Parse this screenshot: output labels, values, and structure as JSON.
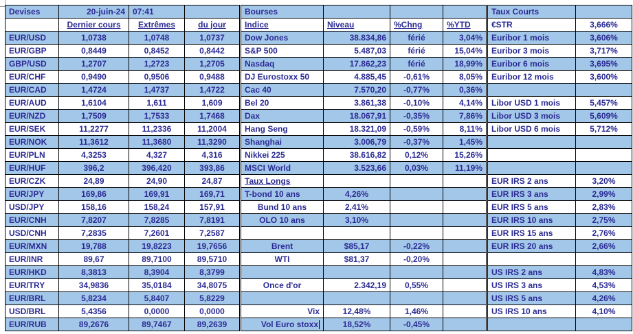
{
  "meta": {
    "date": "20-juin-24",
    "time": "07:41"
  },
  "colors": {
    "row_blue": "#A3C7E9",
    "text_navy": "#2B2B94",
    "grid": "#000000"
  },
  "devises": {
    "title": "Devises",
    "columns": [
      "Dernier cours",
      "Extrêmes",
      "du jour"
    ],
    "rows": [
      {
        "pair": "EUR/USD",
        "last": "1,0738",
        "ext": "1,0748",
        "day": "1,0737"
      },
      {
        "pair": "EUR/GBP",
        "last": "0,8449",
        "ext": "0,8452",
        "day": "0,8442"
      },
      {
        "pair": "GBP/USD",
        "last": "1,2707",
        "ext": "1,2723",
        "day": "1,2705"
      },
      {
        "pair": "EUR/CHF",
        "last": "0,9490",
        "ext": "0,9506",
        "day": "0,9488"
      },
      {
        "pair": "EUR/CAD",
        "last": "1,4724",
        "ext": "1,4737",
        "day": "1,4722"
      },
      {
        "pair": "EUR/AUD",
        "last": "1,6104",
        "ext": "1,611",
        "day": "1,609"
      },
      {
        "pair": "EUR/NZD",
        "last": "1,7509",
        "ext": "1,7533",
        "day": "1,7468"
      },
      {
        "pair": "EUR/SEK",
        "last": "11,2277",
        "ext": "11,2336",
        "day": "11,2004"
      },
      {
        "pair": "EUR/NOK",
        "last": "11,3612",
        "ext": "11,3680",
        "day": "11,3290"
      },
      {
        "pair": "EUR/PLN",
        "last": "4,3253",
        "ext": "4,327",
        "day": "4,316"
      },
      {
        "pair": "EUR/HUF",
        "last": "396,2",
        "ext": "396,420",
        "day": "393,86"
      },
      {
        "pair": "EUR/CZK",
        "last": "24,89",
        "ext": "24,90",
        "day": "24,87"
      },
      {
        "pair": "EUR/JPY",
        "last": "169,86",
        "ext": "169,91",
        "day": "169,71"
      },
      {
        "pair": "USD/JPY",
        "last": "158,16",
        "ext": "158,24",
        "day": "157,91"
      },
      {
        "pair": "EUR/CNH",
        "last": "7,8207",
        "ext": "7,8285",
        "day": "7,8191"
      },
      {
        "pair": "USD/CNH",
        "last": "7,2835",
        "ext": "7,2601",
        "day": "7,2587"
      },
      {
        "pair": "EUR/MXN",
        "last": "19,788",
        "ext": "19,8223",
        "day": "19,7656"
      },
      {
        "pair": "EUR/INR",
        "last": "89,67",
        "ext": "89,7100",
        "day": "89,5710"
      },
      {
        "pair": "EUR/HKD",
        "last": "8,3813",
        "ext": "8,3904",
        "day": "8,3799"
      },
      {
        "pair": "EUR/TRY",
        "last": "34,9836",
        "ext": "35,0184",
        "day": "34,8075"
      },
      {
        "pair": "EUR/BRL",
        "last": "5,8234",
        "ext": "5,8407",
        "day": "5,8229"
      },
      {
        "pair": "USD/BRL",
        "last": "5,4356",
        "ext": "0,0000",
        "day": "0,0000"
      },
      {
        "pair": "EUR/RUB",
        "last": "89,2676",
        "ext": "89,7467",
        "day": "89,2639"
      }
    ]
  },
  "bourses": {
    "title": "Bourses",
    "columns": [
      "Indice",
      "Niveau",
      "%Chng",
      "%YTD"
    ],
    "rows": [
      {
        "kind": "index",
        "c1": "Dow Jones",
        "c2": "38.834,86",
        "c3": "férié",
        "c4": "3,04%"
      },
      {
        "kind": "index",
        "c1": "S&P 500",
        "c2": "5.487,03",
        "c3": "férié",
        "c4": "15,04%"
      },
      {
        "kind": "index",
        "c1": "Nasdaq",
        "c2": "17.862,23",
        "c3": "férié",
        "c4": "18,99%"
      },
      {
        "kind": "index",
        "c1": "DJ Eurostoxx 50",
        "c2": "4.885,45",
        "c3": "-0,61%",
        "c4": "8,05%"
      },
      {
        "kind": "index",
        "c1": "Cac 40",
        "c2": "7.570,20",
        "c3": "-0,77%",
        "c4": "0,36%"
      },
      {
        "kind": "index",
        "c1": "Bel 20",
        "c2": "3.861,38",
        "c3": "-0,10%",
        "c4": "4,14%"
      },
      {
        "kind": "index",
        "c1": "Dax",
        "c2": "18.067,91",
        "c3": "-0,35%",
        "c4": "7,86%"
      },
      {
        "kind": "index",
        "c1": "Hang Seng",
        "c2": "18.321,09",
        "c3": "-0,59%",
        "c4": "8,11%"
      },
      {
        "kind": "index",
        "c1": "Shanghai",
        "c2": "3.006,79",
        "c3": "-0,37%",
        "c4": "1,45%"
      },
      {
        "kind": "index",
        "c1": "Nikkei 225",
        "c2": "38.616,82",
        "c3": "0,12%",
        "c4": "15,26%"
      },
      {
        "kind": "index",
        "c1": "MSCI World",
        "c2": "3.523,66",
        "c3": "0,03%",
        "c4": "11,19%"
      },
      {
        "kind": "subheader",
        "c1": "Taux Longs",
        "c2": "",
        "c3": "",
        "c4": ""
      },
      {
        "kind": "rate1",
        "c1": "T-bond 10 ans",
        "c2": "4,26%",
        "c3": "",
        "c4": ""
      },
      {
        "kind": "rate2",
        "c1": "Bund 10 ans",
        "c2": "2,41%",
        "c3": "",
        "c4": ""
      },
      {
        "kind": "rate2",
        "c1": "OLO 10 ans",
        "c2": "3,10%",
        "c3": "",
        "c4": ""
      },
      {
        "kind": "empty",
        "c1": "",
        "c2": "",
        "c3": "",
        "c4": ""
      },
      {
        "kind": "commodity",
        "c1": "Brent",
        "c2": "$85,17",
        "c3": "-0,22%",
        "c4": ""
      },
      {
        "kind": "commodity",
        "c1": "WTI",
        "c2": "$81,37",
        "c3": "-0,20%",
        "c4": ""
      },
      {
        "kind": "empty",
        "c1": "",
        "c2": "",
        "c3": "",
        "c4": ""
      },
      {
        "kind": "gold",
        "c1": "Once d'or",
        "c2": "2.342,19",
        "c3": "0,55%",
        "c4": ""
      },
      {
        "kind": "empty",
        "c1": "",
        "c2": "",
        "c3": "",
        "c4": ""
      },
      {
        "kind": "vol",
        "c1": "Vix",
        "c2": "12,48%",
        "c3": "1,46%",
        "c4": ""
      },
      {
        "kind": "vol",
        "c1": "Vol Euro stoxx",
        "c2": "18,52%",
        "c3": "-0,45%",
        "c4": "",
        "cursor": true
      }
    ]
  },
  "taux_courts": {
    "title": "Taux Courts",
    "rows": [
      {
        "label": "€STR",
        "value": "3,666%"
      },
      {
        "label": "Euribor 1 mois",
        "value": "3,606%"
      },
      {
        "label": "Euribor 3 mois",
        "value": "3,717%"
      },
      {
        "label": "Euribor 6 mois",
        "value": "3,695%"
      },
      {
        "label": "Euribor 12 mois",
        "value": "3,600%"
      },
      {
        "label": "",
        "value": ""
      },
      {
        "label": "Libor USD 1 mois",
        "value": "5,457%"
      },
      {
        "label": "Libor USD 3 mois",
        "value": "5,609%"
      },
      {
        "label": "Libor USD 6 mois",
        "value": "5,712%"
      },
      {
        "label": "",
        "value": ""
      },
      {
        "label": "",
        "value": ""
      },
      {
        "label": "",
        "value": ""
      },
      {
        "label": "EUR IRS 2 ans",
        "value": "3,20%"
      },
      {
        "label": "EUR IRS 3 ans",
        "value": "2,99%"
      },
      {
        "label": "EUR IRS 5 ans",
        "value": "2,83%"
      },
      {
        "label": "EUR IRS 10 ans",
        "value": "2,75%"
      },
      {
        "label": "EUR IRS 15 ans",
        "value": "2,76%"
      },
      {
        "label": "EUR IRS 20 ans",
        "value": "2,66%"
      },
      {
        "label": "",
        "value": ""
      },
      {
        "label": "US IRS 2 ans",
        "value": "4,83%"
      },
      {
        "label": "US IRS 3 ans",
        "value": "4,53%"
      },
      {
        "label": "US IRS 5 ans",
        "value": "4,26%"
      },
      {
        "label": "US IRS 10 ans",
        "value": "4,10%"
      },
      {
        "label": "",
        "value": ""
      }
    ]
  }
}
